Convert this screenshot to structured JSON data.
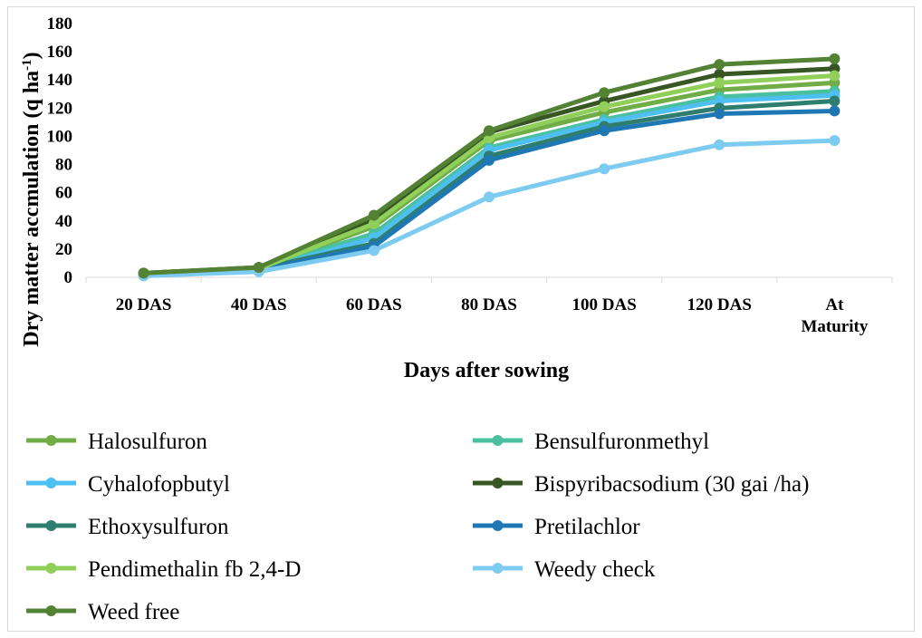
{
  "chart_data": {
    "type": "line",
    "title": "",
    "xlabel": "Days after sowing",
    "ylabel": "Dry matter accmulation (q ha",
    "ylabel_sup": "-1",
    "ylabel_close": ")",
    "categories": [
      "20 DAS",
      "40 DAS",
      "60 DAS",
      "80 DAS",
      "100 DAS",
      "120 DAS",
      "At Maturity"
    ],
    "ylim": [
      0,
      180
    ],
    "yticks": [
      0,
      20,
      40,
      60,
      80,
      100,
      120,
      140,
      160,
      180
    ],
    "grid": false,
    "legend_position": "bottom",
    "series": [
      {
        "name": "Halosulfuron",
        "color": "#70ad47",
        "values": [
          2,
          6,
          36,
          97,
          117,
          133,
          138
        ]
      },
      {
        "name": "Bensulfuronmethyl",
        "color": "#4bc0a0",
        "values": [
          2,
          6,
          31,
          92,
          112,
          128,
          132
        ]
      },
      {
        "name": "Cyhalofopbutyl",
        "color": "#4dbff0",
        "values": [
          2,
          5,
          28,
          90,
          110,
          125,
          129
        ]
      },
      {
        "name": "Bispyribacsodium (30 gai /ha)",
        "color": "#375623",
        "values": [
          3,
          7,
          41,
          103,
          125,
          144,
          148
        ]
      },
      {
        "name": "Ethoxysulfuron",
        "color": "#2e7d6e",
        "values": [
          2,
          6,
          24,
          86,
          107,
          120,
          125
        ]
      },
      {
        "name": "Pretilachlor",
        "color": "#1f78b4",
        "values": [
          2,
          5,
          22,
          83,
          104,
          116,
          118
        ]
      },
      {
        "name": "Pendimethalin fb 2,4-D",
        "color": "#8fcf5a",
        "values": [
          2,
          6,
          38,
          99,
          121,
          138,
          143
        ]
      },
      {
        "name": "Weedy check",
        "color": "#7ecbf1",
        "values": [
          1,
          4,
          19,
          57,
          77,
          94,
          97
        ]
      },
      {
        "name": "Weed free",
        "color": "#548235",
        "values": [
          3,
          7,
          44,
          104,
          131,
          151,
          155
        ]
      }
    ]
  }
}
